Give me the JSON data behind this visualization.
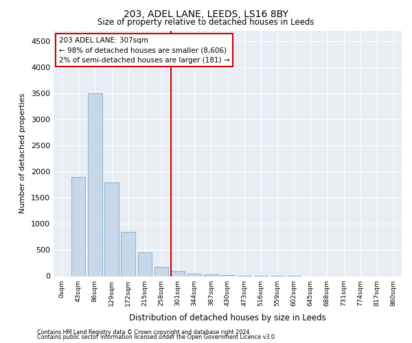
{
  "title_line1": "203, ADEL LANE, LEEDS, LS16 8BY",
  "title_line2": "Size of property relative to detached houses in Leeds",
  "xlabel": "Distribution of detached houses by size in Leeds",
  "ylabel": "Number of detached properties",
  "bin_labels": [
    "0sqm",
    "43sqm",
    "86sqm",
    "129sqm",
    "172sqm",
    "215sqm",
    "258sqm",
    "301sqm",
    "344sqm",
    "387sqm",
    "430sqm",
    "473sqm",
    "516sqm",
    "559sqm",
    "602sqm",
    "645sqm",
    "688sqm",
    "731sqm",
    "774sqm",
    "817sqm",
    "860sqm"
  ],
  "bar_values": [
    0,
    1900,
    3500,
    1800,
    850,
    450,
    175,
    100,
    50,
    30,
    15,
    8,
    4,
    2,
    1,
    0,
    0,
    0,
    0,
    0,
    0
  ],
  "bar_color": "#c8d8e8",
  "bar_edge_color": "#7aa8c8",
  "vline_index": 7,
  "annotation_line1": "203 ADEL LANE: 307sqm",
  "annotation_line2": "← 98% of detached houses are smaller (8,606)",
  "annotation_line3": "2% of semi-detached houses are larger (181) →",
  "vline_color": "#cc0000",
  "annotation_box_edge": "#cc0000",
  "ylim": [
    0,
    4700
  ],
  "yticks": [
    0,
    500,
    1000,
    1500,
    2000,
    2500,
    3000,
    3500,
    4000,
    4500
  ],
  "background_color": "#e8eef4",
  "footer_line1": "Contains HM Land Registry data © Crown copyright and database right 2024.",
  "footer_line2": "Contains public sector information licensed under the Open Government Licence v3.0."
}
